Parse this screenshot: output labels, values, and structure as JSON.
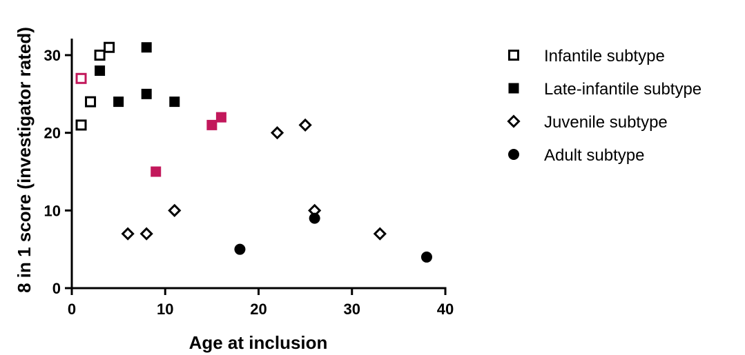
{
  "chart_data": {
    "type": "scatter",
    "xlabel": "Age at inclusion",
    "ylabel": "8 in 1 score (investigator rated)",
    "xlim": [
      0,
      40
    ],
    "ylim": [
      0,
      30
    ],
    "x_ticks": [
      0,
      10,
      20,
      30,
      40
    ],
    "y_ticks": [
      0,
      10,
      20,
      30
    ],
    "grid": false,
    "legend_position": "right",
    "highlight_color": "#c2185b",
    "series": [
      {
        "name": "Infantile subtype",
        "marker": "open-square",
        "color": "#000000",
        "points": [
          {
            "x": 1,
            "y": 21
          },
          {
            "x": 1,
            "y": 27,
            "highlight": true
          },
          {
            "x": 2,
            "y": 24
          },
          {
            "x": 3,
            "y": 30
          },
          {
            "x": 4,
            "y": 31
          }
        ]
      },
      {
        "name": "Late-infantile subtype",
        "marker": "filled-square",
        "color": "#000000",
        "points": [
          {
            "x": 3,
            "y": 28
          },
          {
            "x": 5,
            "y": 24
          },
          {
            "x": 8,
            "y": 31
          },
          {
            "x": 8,
            "y": 25
          },
          {
            "x": 11,
            "y": 24
          },
          {
            "x": 9,
            "y": 15,
            "highlight": true
          },
          {
            "x": 15,
            "y": 21,
            "highlight": true
          },
          {
            "x": 16,
            "y": 22,
            "highlight": true
          }
        ]
      },
      {
        "name": "Juvenile subtype",
        "marker": "open-diamond",
        "color": "#000000",
        "points": [
          {
            "x": 6,
            "y": 7
          },
          {
            "x": 8,
            "y": 7
          },
          {
            "x": 11,
            "y": 10
          },
          {
            "x": 22,
            "y": 20
          },
          {
            "x": 25,
            "y": 21
          },
          {
            "x": 26,
            "y": 10
          },
          {
            "x": 33,
            "y": 7
          }
        ]
      },
      {
        "name": "Adult subtype",
        "marker": "filled-circle",
        "color": "#000000",
        "points": [
          {
            "x": 18,
            "y": 5
          },
          {
            "x": 26,
            "y": 9
          },
          {
            "x": 38,
            "y": 4
          }
        ]
      }
    ]
  }
}
